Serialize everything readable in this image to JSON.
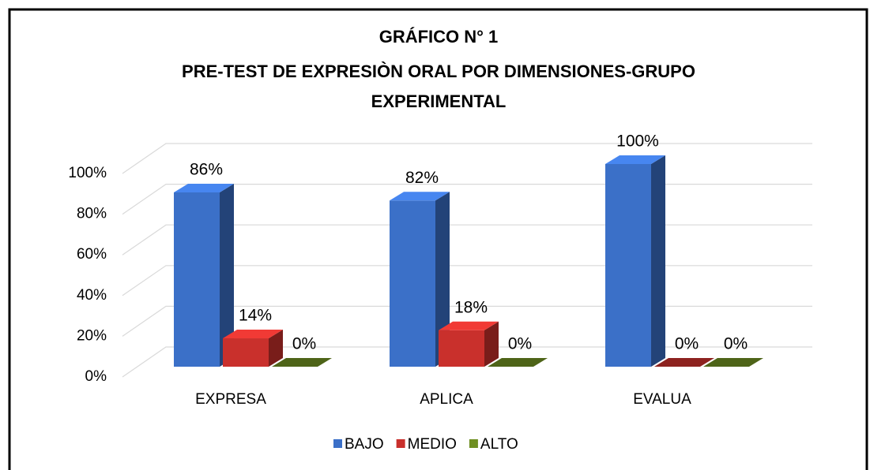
{
  "chart_data": {
    "type": "bar3d",
    "title": [
      "GRÁFICO N° 1",
      "PRE-TEST DE EXPRESIÒN ORAL POR DIMENSIONES-GRUPO",
      "EXPERIMENTAL"
    ],
    "categories": [
      "EXPRESA",
      "APLICA",
      "EVALUA"
    ],
    "series": [
      {
        "name": "BAJO",
        "color": "#3b70c8",
        "values": [
          86,
          82,
          100
        ],
        "value_labels": [
          "86%",
          "82%",
          "100%"
        ]
      },
      {
        "name": "MEDIO",
        "color": "#c9302c",
        "values": [
          14,
          18,
          0
        ],
        "value_labels": [
          "14%",
          "18%",
          "0%"
        ]
      },
      {
        "name": "ALTO",
        "color": "#6f8f22",
        "values": [
          0,
          0,
          0
        ],
        "value_labels": [
          "0%",
          "0%",
          "0%"
        ]
      }
    ],
    "ylim": [
      0,
      100
    ],
    "yticks": [
      {
        "value": 0,
        "label": "0%"
      },
      {
        "value": 20,
        "label": "20%"
      },
      {
        "value": 40,
        "label": "40%"
      },
      {
        "value": 60,
        "label": "60%"
      },
      {
        "value": 80,
        "label": "80%"
      },
      {
        "value": 100,
        "label": "100%"
      }
    ],
    "grid": true,
    "legend": "bottom"
  }
}
